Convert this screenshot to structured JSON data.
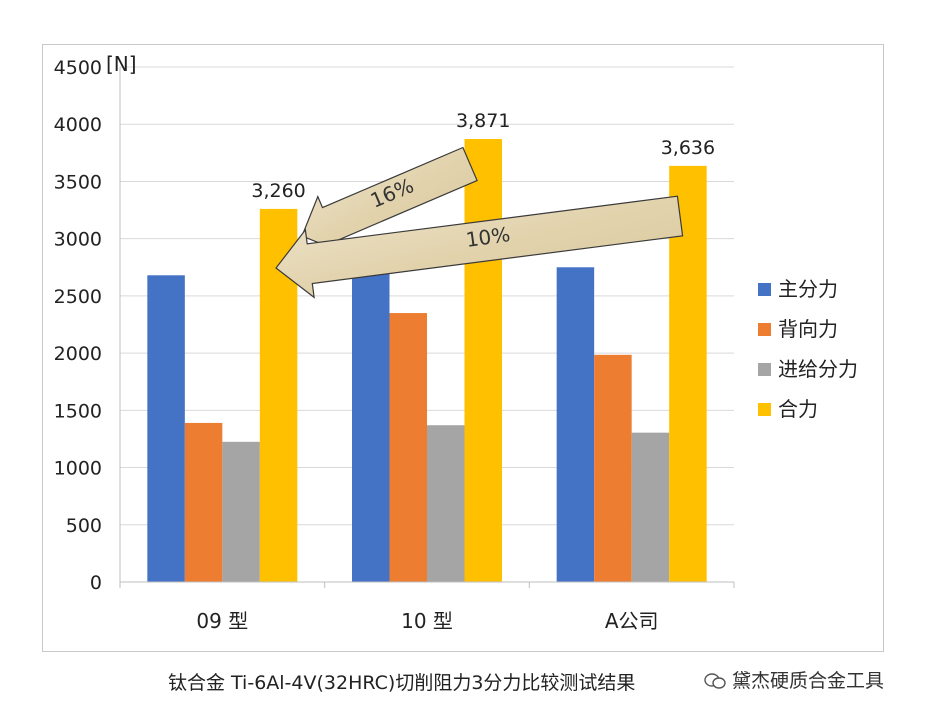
{
  "chart_data": {
    "type": "bar",
    "unit_label": "[N]",
    "categories": [
      "09 型",
      "10 型",
      "A公司"
    ],
    "series": [
      {
        "name": "主分力",
        "color": "#4472c4",
        "values": [
          2680,
          2760,
          2750
        ]
      },
      {
        "name": "背向力",
        "color": "#ed7d31",
        "values": [
          1390,
          2350,
          1985
        ]
      },
      {
        "name": "进给分力",
        "color": "#a5a5a5",
        "values": [
          1225,
          1370,
          1305
        ]
      },
      {
        "name": "合力",
        "color": "#ffc000",
        "values": [
          3260,
          3871,
          3636
        ]
      }
    ],
    "data_labels": [
      "3,260",
      "3,871",
      "3,636"
    ],
    "ylim": [
      0,
      4500
    ],
    "yticks": [
      0,
      500,
      1000,
      1500,
      2000,
      2500,
      3000,
      3500,
      4000,
      4500
    ],
    "legend_position": "right",
    "grid": true,
    "annotations": [
      {
        "text": "16%",
        "from_category": 1,
        "to_category": 0
      },
      {
        "text": "10%",
        "from_category": 2,
        "to_category": 0
      }
    ]
  },
  "caption": "钛合金 Ti-6Al-4V(32HRC)切削阻力3分力比较测试结果",
  "watermark": "黛杰硬质合金工具"
}
